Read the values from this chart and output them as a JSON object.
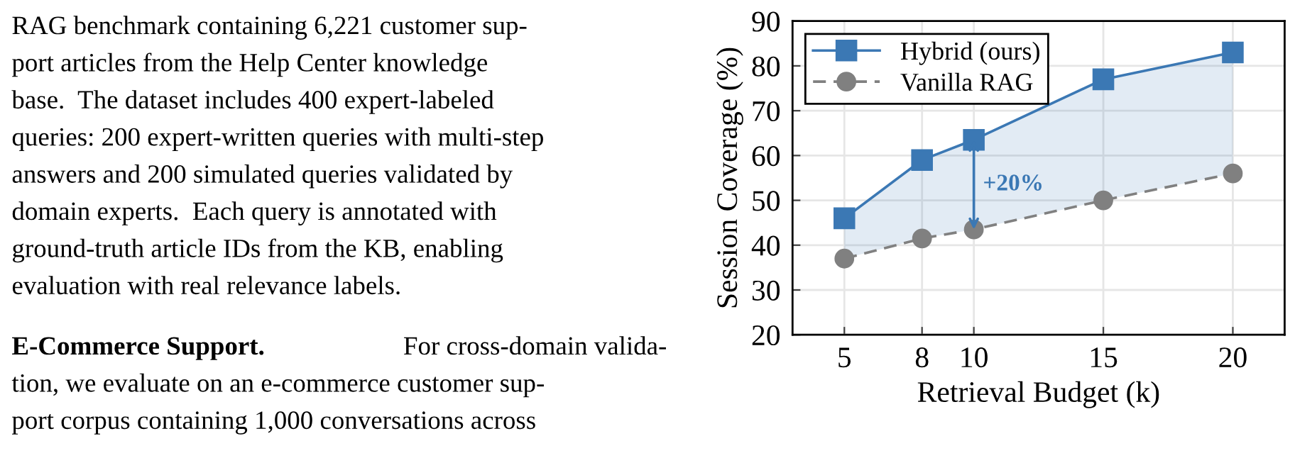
{
  "chart_data": {
    "type": "line",
    "xlabel": "Retrieval Budget (k)",
    "ylabel": "Session Coverage (%)",
    "x": [
      5,
      8,
      10,
      15,
      20
    ],
    "xlim": [
      3,
      22
    ],
    "xticks": [
      5,
      8,
      10,
      15,
      20
    ],
    "ylim": [
      20,
      90
    ],
    "yticks": [
      20,
      30,
      40,
      50,
      60,
      70,
      80,
      90
    ],
    "grid": true,
    "legend": "top left",
    "series": [
      {
        "name": "Hybrid (ours)",
        "color": "#3b78b4",
        "values": [
          46,
          59,
          63.5,
          77,
          83
        ],
        "marker": "square",
        "line_style": "solid",
        "lower": [
          37,
          41.5,
          43.5,
          50,
          56
        ],
        "upper": [
          46,
          59,
          63.5,
          77,
          83
        ]
      },
      {
        "name": "Vanilla RAG",
        "color": "#808080",
        "values": [
          37,
          41.5,
          43.5,
          50,
          56
        ],
        "marker": "circle",
        "line_style": "dashed"
      }
    ],
    "annotations": [
      "+20%",
      "RAG benchmark containing 6,221 customer sup-",
      "port articles from the Help Center knowledge",
      "base.  The dataset includes 400 expert-labeled",
      "queries: 200 expert-written queries with multi-step",
      "answers and 200 simulated queries validated by",
      "domain experts.  Each query is annotated with",
      "ground-truth article IDs from the KB, enabling",
      "evaluation with real relevance labels.",
      "E-Commerce Support.",
      "For cross-domain valida-",
      "tion, we evaluate on an e-commerce customer sup-",
      "port corpus containing 1,000 conversations across"
    ]
  }
}
